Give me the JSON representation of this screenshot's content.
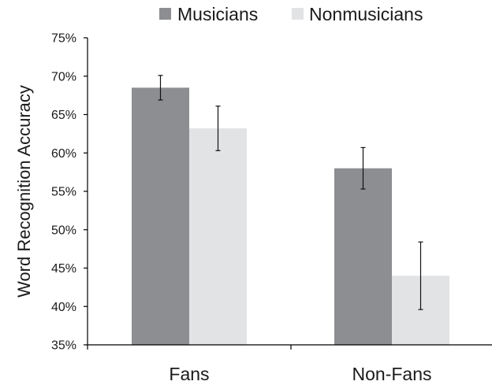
{
  "chart_data": {
    "type": "bar",
    "title": "",
    "xlabel": "",
    "ylabel": "Word Recognition Accuracy",
    "ylim": [
      35,
      75
    ],
    "yticks": [
      "35%",
      "40%",
      "45%",
      "50%",
      "55%",
      "60%",
      "65%",
      "70%",
      "75%"
    ],
    "ytick_values": [
      35,
      40,
      45,
      50,
      55,
      60,
      65,
      70,
      75
    ],
    "categories": [
      "Fans",
      "Non-Fans"
    ],
    "series": [
      {
        "name": "Musicians",
        "values": [
          68.5,
          58.0
        ],
        "error": [
          1.6,
          2.7
        ],
        "color": "#8c8e91"
      },
      {
        "name": "Nonmusicians",
        "values": [
          63.2,
          44.0
        ],
        "error": [
          2.9,
          4.4
        ],
        "color": "#e2e3e5"
      }
    ],
    "legend": "top",
    "grid": false
  }
}
